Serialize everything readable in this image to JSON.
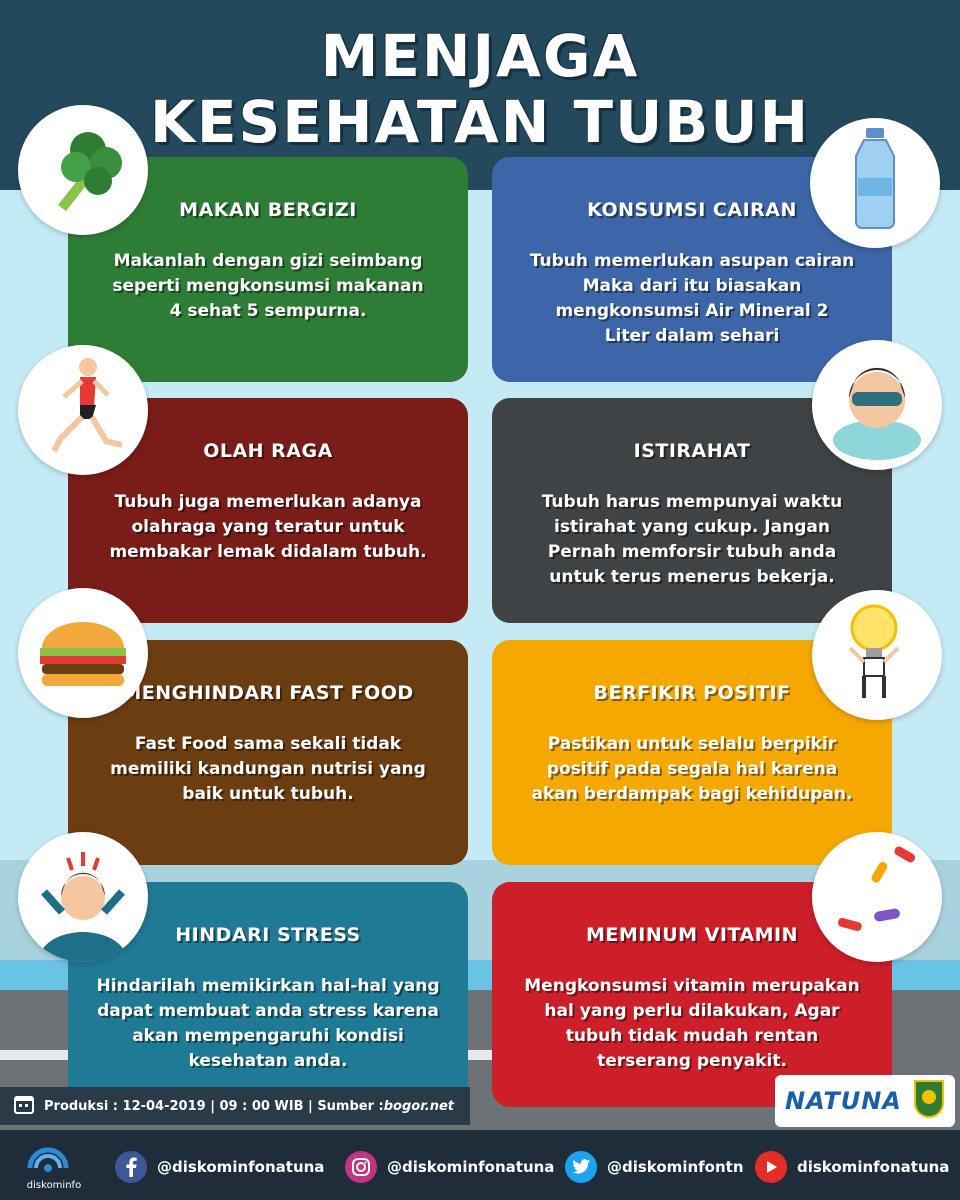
{
  "title": {
    "line1": "MENJAGA",
    "line2": "KESEHATAN TUBUH"
  },
  "cards": [
    {
      "heading": "MAKAN BERGIZI",
      "lines": [
        "Makanlah dengan gizi seimbang",
        "seperti mengkonsumsi makanan",
        "4 sehat 5 sempurna."
      ],
      "color": "#2e7d36",
      "icon": "broccoli-icon"
    },
    {
      "heading": "KONSUMSI CAIRAN",
      "lines": [
        "Tubuh memerlukan asupan cairan",
        "Maka dari itu biasakan",
        "mengkonsumsi Air Mineral 2",
        "Liter dalam sehari"
      ],
      "color": "#3c66a8",
      "icon": "water-bottle-icon"
    },
    {
      "heading": "OLAH RAGA",
      "lines": [
        "Tubuh juga memerlukan adanya",
        "olahraga yang teratur untuk",
        "membakar lemak didalam tubuh."
      ],
      "color": "#7a1c17",
      "icon": "runner-icon"
    },
    {
      "heading": "ISTIRAHAT",
      "lines": [
        "Tubuh harus mempunyai waktu",
        "istirahat yang cukup. Jangan",
        "Pernah memforsir tubuh anda",
        "untuk terus menerus bekerja."
      ],
      "color": "#3f4346",
      "icon": "sleeping-person-icon"
    },
    {
      "heading": "MENGHINDARI FAST FOOD",
      "lines": [
        "Fast Food sama sekali tidak",
        "memiliki kandungan nutrisi yang",
        "baik untuk tubuh."
      ],
      "color": "#6d3d12",
      "icon": "burger-icon"
    },
    {
      "heading": "BERFIKIR POSITIF",
      "lines": [
        "Pastikan untuk selalu berpikir",
        "positif pada segala hal karena",
        "akan berdampak bagi kehidupan."
      ],
      "color": "#f5a800",
      "icon": "lightbulb-icon"
    },
    {
      "heading": "HINDARI STRESS",
      "lines": [
        "Hindarilah memikirkan hal-hal yang",
        "dapat membuat anda stress karena",
        "akan mempengaruhi kondisi",
        "kesehatan anda."
      ],
      "color": "#1f7a96",
      "icon": "stressed-person-icon"
    },
    {
      "heading": "MEMINUM VITAMIN",
      "lines": [
        "Mengkonsumsi vitamin merupakan",
        "hal yang perlu dilakukan, Agar",
        "tubuh tidak mudah rentan",
        "terserang penyakit."
      ],
      "color": "#cc1f2a",
      "icon": "pills-icon"
    }
  ],
  "production": {
    "text": "Produksi : 12-04-2019 | 09 : 00 WIB | Sumber : ",
    "source": "bogor.net"
  },
  "brand": {
    "name": "NATUNA"
  },
  "footer": {
    "logo_text": "diskominfo",
    "social": [
      {
        "platform": "facebook",
        "handle": "@diskominfonatuna",
        "color": "#3b5998",
        "icon": "facebook-icon"
      },
      {
        "platform": "instagram",
        "handle": "@diskominfonatuna",
        "color": "#c13584",
        "icon": "instagram-icon"
      },
      {
        "platform": "twitter",
        "handle": "@diskominfontn",
        "color": "#1da1f2",
        "icon": "twitter-icon"
      },
      {
        "platform": "youtube",
        "handle": "diskominfonatuna",
        "color": "#e52d27",
        "icon": "youtube-icon"
      }
    ]
  }
}
